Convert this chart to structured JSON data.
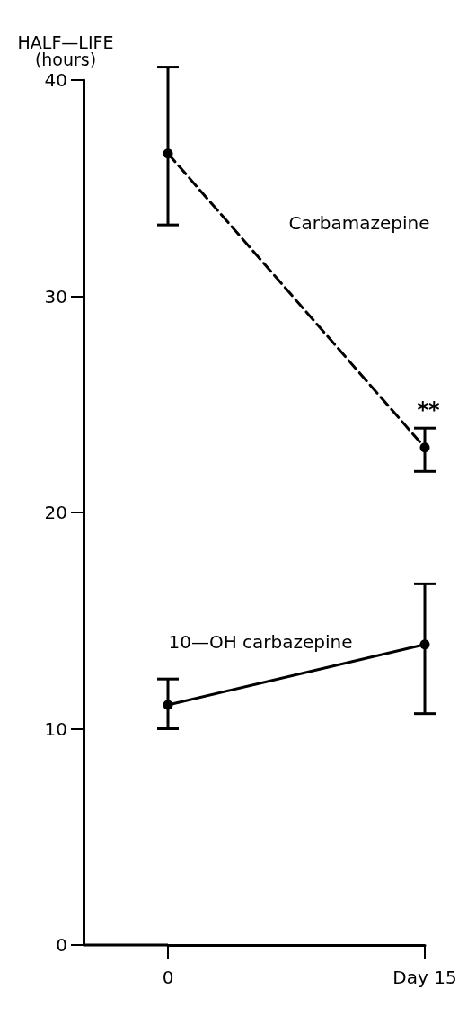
{
  "chart_data": {
    "type": "line",
    "ylabel": "HALF—LIFE\n(hours)",
    "categories": [
      "0",
      "Day 15"
    ],
    "ylim": [
      0,
      40
    ],
    "yticks": [
      0,
      10,
      20,
      30,
      40
    ],
    "series": [
      {
        "name": "Carbamazepine",
        "color": "#000000",
        "line_style": "dashed",
        "values": [
          36.6,
          23.0
        ],
        "errors": [
          [
            33.3,
            40.6
          ],
          [
            21.9,
            23.9
          ]
        ]
      },
      {
        "name": "10—OH carbazepine",
        "color": "#000000",
        "line_style": "solid",
        "values": [
          11.1,
          13.9
        ],
        "errors": [
          [
            10.0,
            12.3
          ],
          [
            10.7,
            16.7
          ]
        ]
      }
    ],
    "annotations": [
      {
        "text": "**",
        "x": "Day 15",
        "y": 23.9
      }
    ],
    "marker": "circle",
    "grid": false,
    "legend": false
  }
}
